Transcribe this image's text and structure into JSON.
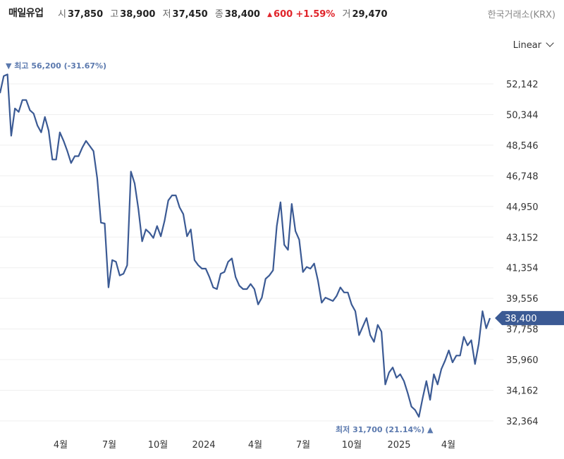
{
  "header": {
    "stock_name": "매일유업",
    "open_label": "시",
    "open": "37,850",
    "high_label": "고",
    "high": "38,900",
    "low_label": "저",
    "low": "37,450",
    "close_label": "종",
    "close": "38,400",
    "change": "600",
    "change_pct": "+1.59%",
    "volume_label": "거",
    "volume": "29,470",
    "exchange": "한국거래소(KRX)",
    "up_color": "#e0252b"
  },
  "controls": {
    "scale": "Linear"
  },
  "chart_data": {
    "type": "line",
    "y_ticks": [
      "52,142",
      "50,344",
      "48,546",
      "46,748",
      "44,950",
      "43,152",
      "41,354",
      "39,556",
      "37,758",
      "35,960",
      "34,162",
      "32,364"
    ],
    "x_ticks": [
      "4월",
      "7월",
      "10월",
      "2024",
      "4월",
      "7월",
      "10월",
      "2025",
      "4월"
    ],
    "ylim": [
      31350,
      53200
    ],
    "line_color": "#3b5a94",
    "current_price": 38400,
    "current_label": "38,400",
    "high_annotation": "최고 56,200 (-31.67%)",
    "low_annotation": "최저 31,700 (21.14%)",
    "series": [
      {
        "values": [
          51600,
          52600,
          52700,
          49100,
          50700,
          50500,
          51200,
          51200,
          50600,
          50400,
          49700,
          49300,
          50200,
          49400,
          47700,
          47700,
          49300,
          48800,
          48200,
          47500,
          47900,
          47900,
          48400,
          48800,
          48500,
          48200,
          46600,
          44000,
          43950,
          40200,
          41800,
          41700,
          40900,
          41000,
          41500,
          47000,
          46300,
          44800,
          42900,
          43600,
          43400,
          43100,
          43800,
          43200,
          44100,
          45300,
          45600,
          45600,
          44900,
          44500,
          43200,
          43600,
          41800,
          41500,
          41300,
          41300,
          40800,
          40200,
          40100,
          41000,
          41100,
          41700,
          41900,
          40800,
          40300,
          40100,
          40100,
          40400,
          40100,
          39200,
          39600,
          40700,
          40900,
          41200,
          43800,
          45200,
          42700,
          42400,
          45100,
          43500,
          43000,
          41100,
          41400,
          41300,
          41600,
          40600,
          39300,
          39600,
          39500,
          39400,
          39700,
          40200,
          39900,
          39900,
          39200,
          38800,
          37400,
          37900,
          38400,
          37400,
          37000,
          38000,
          37600,
          34500,
          35200,
          35500,
          34900,
          35100,
          34700,
          34000,
          33200,
          33000,
          32600,
          33700,
          34700,
          33600,
          35100,
          34500,
          35400,
          35900,
          36500,
          35800,
          36200,
          36200,
          37300,
          36800,
          37100,
          35700,
          36900,
          38800,
          37800,
          38400
        ]
      }
    ]
  }
}
